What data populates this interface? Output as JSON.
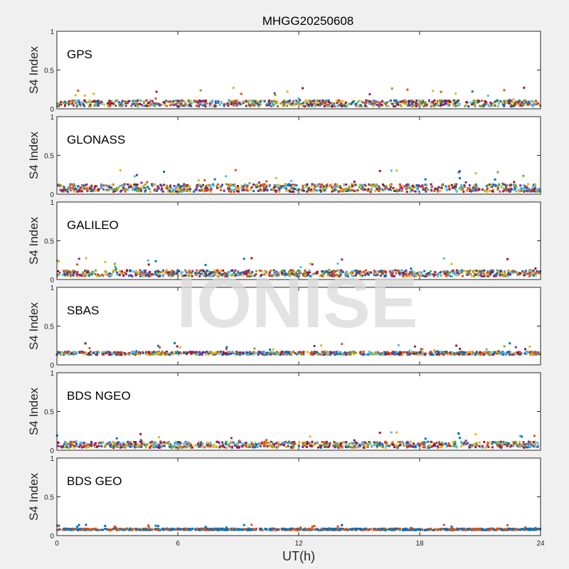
{
  "chart_data": {
    "type": "scatter",
    "title": "MHGG20250608",
    "xlabel": "UT(h)",
    "ylabel": "S4 Index",
    "xlim": [
      0,
      24
    ],
    "ylim": [
      0,
      1
    ],
    "xticks": [
      "0",
      "6",
      "12",
      "18",
      "24"
    ],
    "yticks": [
      "0",
      "0.5",
      "1"
    ],
    "watermark": "IONISE",
    "colors": [
      "#0072bd",
      "#d95319",
      "#edb120",
      "#7e2f8e",
      "#77ac30",
      "#4dbeee",
      "#a2142f"
    ],
    "panels": [
      {
        "name": "GPS",
        "typical_s4": 0.07,
        "spread": 0.04,
        "max_s4": 0.28
      },
      {
        "name": "GLONASS",
        "typical_s4": 0.08,
        "spread": 0.05,
        "max_s4": 0.32
      },
      {
        "name": "GALILEO",
        "typical_s4": 0.08,
        "spread": 0.04,
        "max_s4": 0.28
      },
      {
        "name": "SBAS",
        "typical_s4": 0.15,
        "spread": 0.02,
        "max_s4": 0.28
      },
      {
        "name": "BDS NGEO",
        "typical_s4": 0.07,
        "spread": 0.04,
        "max_s4": 0.24
      },
      {
        "name": "BDS GEO",
        "typical_s4": 0.08,
        "spread": 0.01,
        "max_s4": 0.14
      }
    ]
  }
}
